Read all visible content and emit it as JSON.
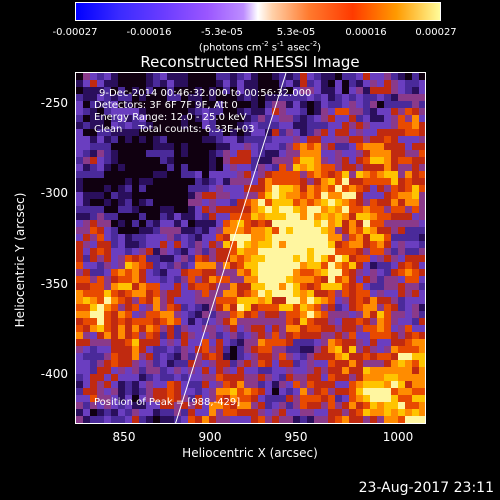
{
  "colorbar": {
    "tick_labels": [
      "-0.00027",
      "-0.00016",
      "-5.3e-05",
      "5.3e-05",
      "0.00016",
      "0.00027"
    ],
    "units_prefix": "(photons cm",
    "units_exp1": "-2",
    "units_mid1": " s",
    "units_exp2": "-1",
    "units_mid2": " asec",
    "units_exp3": "-2",
    "units_suffix": ")"
  },
  "title": "Reconstructed RHESSI Image",
  "info": {
    "line1": "9-Dec-2014 00:46:32.000 to 00:56:32.000",
    "line2": "Detectors: 3F 6F 7F 9F, Att 0",
    "line3": "Energy Range: 12.0 - 25.0 keV",
    "line4": "Clean     Total counts: 6.33E+03",
    "peak": "Position of Peak = [988,-429]"
  },
  "axes": {
    "xlabel": "Heliocentric X (arcsec)",
    "ylabel": "Heliocentric Y (arcsec)",
    "xticks": [
      "850",
      "900",
      "950",
      "1000"
    ],
    "yticks": [
      "-250",
      "-300",
      "-350",
      "-400"
    ]
  },
  "timestamp": "23-Aug-2017 23:11",
  "colors": {
    "background": "#000000",
    "axes": "#ffffff"
  }
}
